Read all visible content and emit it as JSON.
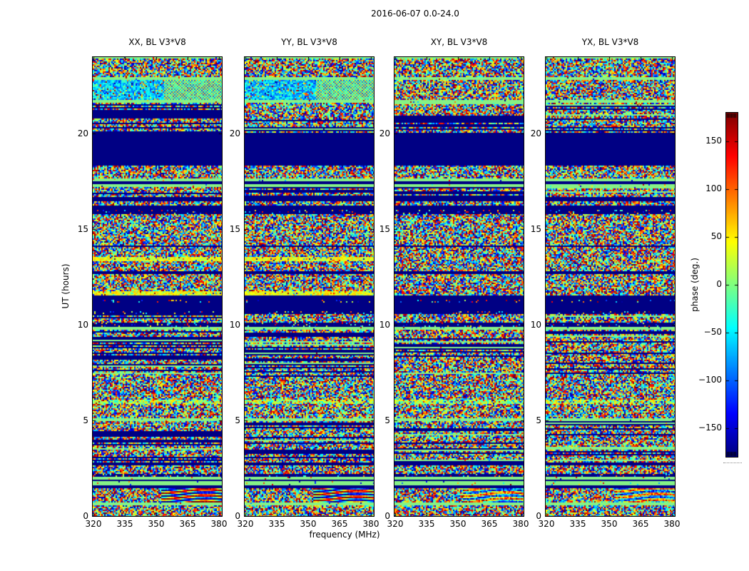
{
  "figure": {
    "suptitle": "2016-06-07 0.0-24.0"
  },
  "chart_data": {
    "type": "heatmap",
    "title": "2016-06-07 0.0-24.0",
    "xlabel": "frequency (MHz)",
    "ylabel": "UT (hours)",
    "xlim": [
      319.6,
      381.3
    ],
    "ylim": [
      0,
      24
    ],
    "x_ticks": [
      320,
      335,
      350,
      365,
      380
    ],
    "x_tick_labels": [
      "320",
      "335",
      "350",
      "365",
      "380"
    ],
    "y_ticks": [
      0,
      5,
      10,
      15,
      20
    ],
    "y_tick_labels": [
      "0",
      "5",
      "10",
      "15",
      "20"
    ],
    "panels": [
      {
        "title": "XX, BL V3*V8",
        "pol": "XX",
        "baseline": "V3*V8",
        "seed": 11,
        "special": true,
        "fringe": 1.0
      },
      {
        "title": "YY, BL V3*V8",
        "pol": "YY",
        "baseline": "V3*V8",
        "seed": 22,
        "special": true,
        "fringe": 1.0
      },
      {
        "title": "XY, BL V3*V8",
        "pol": "XY",
        "baseline": "V3*V8",
        "seed": 33,
        "special": false,
        "fringe": 0.7
      },
      {
        "title": "YX, BL V3*V8",
        "pol": "YX",
        "baseline": "V3*V8",
        "seed": 44,
        "special": false,
        "fringe": 0.7
      }
    ],
    "colorbar": {
      "label": "phase (deg.)",
      "ticks": [
        150,
        100,
        50,
        0,
        -50,
        -100,
        -150
      ],
      "tick_labels": [
        "150",
        "100",
        "50",
        "0",
        "−50",
        "−100",
        "−150"
      ],
      "vmin": -180,
      "vmax": 180,
      "colormap": "jet"
    },
    "colors": {
      "navy": "#000084",
      "green": "#86f286",
      "background": "#ffffff",
      "axis": "#000000"
    },
    "bands": [
      [
        23.91,
        24.01,
        "green"
      ],
      [
        22.96,
        23.91,
        "noise"
      ],
      [
        22.81,
        22.96,
        "green"
      ],
      [
        21.76,
        22.81,
        "cyan"
      ],
      [
        21.61,
        21.76,
        "green"
      ],
      [
        20.04,
        21.61,
        "striped"
      ],
      [
        18.32,
        20.04,
        "navy"
      ],
      [
        17.65,
        18.32,
        "noise"
      ],
      [
        17.5,
        17.65,
        "green"
      ],
      [
        17.35,
        17.5,
        "navy"
      ],
      [
        17.2,
        17.35,
        "green"
      ],
      [
        16.68,
        17.2,
        "striped"
      ],
      [
        16.45,
        16.68,
        "navy"
      ],
      [
        16.23,
        16.45,
        "noise"
      ],
      [
        16.01,
        16.23,
        "navy"
      ],
      [
        15.78,
        16.01,
        "sparse"
      ],
      [
        14.14,
        15.78,
        "noise"
      ],
      [
        14.03,
        14.14,
        "navy"
      ],
      [
        13.54,
        14.03,
        "noise"
      ],
      [
        13.32,
        13.54,
        "yellow"
      ],
      [
        12.8,
        13.32,
        "noise"
      ],
      [
        12.65,
        12.8,
        "navy"
      ],
      [
        11.75,
        12.65,
        "noise"
      ],
      [
        11.52,
        11.75,
        "yellow"
      ],
      [
        11.3,
        11.52,
        "navy"
      ],
      [
        11.15,
        11.3,
        "sparse"
      ],
      [
        10.7,
        11.15,
        "navy"
      ],
      [
        10.55,
        10.7,
        "sparse"
      ],
      [
        10.33,
        10.55,
        "striped"
      ],
      [
        10.1,
        10.33,
        "noise"
      ],
      [
        9.88,
        10.1,
        "sparse"
      ],
      [
        9.73,
        9.88,
        "green"
      ],
      [
        7.19,
        9.73,
        "striped"
      ],
      [
        6.07,
        7.19,
        "noise"
      ],
      [
        5.85,
        6.07,
        "mixgreen"
      ],
      [
        5.1,
        5.85,
        "noise"
      ],
      [
        4.95,
        5.1,
        "green"
      ],
      [
        2.78,
        4.95,
        "striped"
      ],
      [
        2.63,
        2.78,
        "navy"
      ],
      [
        2.19,
        2.63,
        "noise"
      ],
      [
        2.04,
        2.19,
        "sparse"
      ],
      [
        1.85,
        2.04,
        "green"
      ],
      [
        1.78,
        1.85,
        "navy"
      ],
      [
        1.59,
        1.78,
        "green"
      ],
      [
        1.44,
        1.59,
        "navy"
      ],
      [
        0.69,
        1.44,
        "fringe"
      ],
      [
        0.54,
        0.69,
        "green"
      ],
      [
        0.0,
        0.54,
        "noise"
      ]
    ]
  }
}
